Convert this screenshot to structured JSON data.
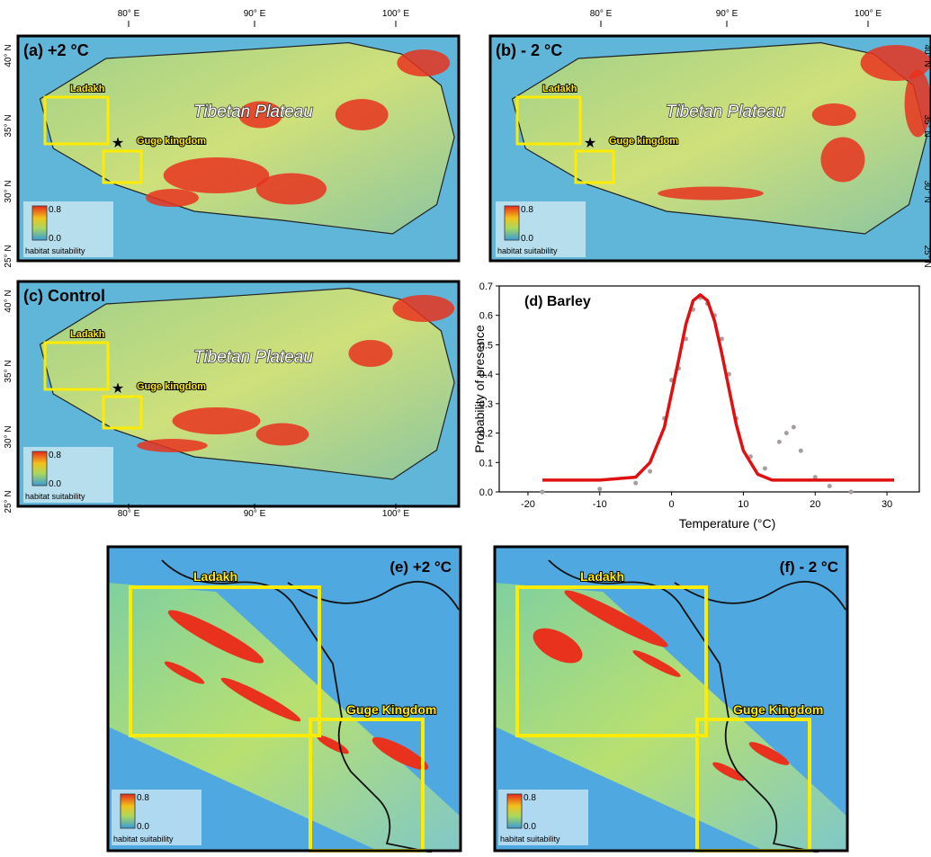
{
  "lon_labels": [
    "80° E",
    "90° E",
    "100° E"
  ],
  "lat_labels": [
    "40° N",
    "35° N",
    "30° N",
    "25° N"
  ],
  "maps": [
    {
      "label": "(a) +2 °C",
      "ladakh": "Ladakh",
      "guge": "Guge kingdom",
      "plateau": "Tibetan Plateau",
      "legend_max": "0.8",
      "legend_min": "0.0",
      "legend_title": "habitat suitability"
    },
    {
      "label": "(b) - 2 °C",
      "ladakh": "Ladakh",
      "guge": "Guge kingdom",
      "plateau": "Tibetan Plateau",
      "legend_max": "0.8",
      "legend_min": "0.0",
      "legend_title": "habitat suitability"
    },
    {
      "label": "(c) Control",
      "ladakh": "Ladakh",
      "guge": "Guge kingdom",
      "plateau": "Tibetan Plateau",
      "legend_max": "0.8",
      "legend_min": "0.0",
      "legend_title": "habitat suitability"
    },
    {
      "label": "(e) +2 °C",
      "ladakh": "Ladakh",
      "guge": "Guge Kingdom",
      "legend_max": "0.8",
      "legend_min": "0.0",
      "legend_title": "habitat suitability"
    },
    {
      "label": "(f) - 2 °C",
      "ladakh": "Ladakh",
      "guge": "Guge Kingdom",
      "legend_max": "0.8",
      "legend_min": "0.0",
      "legend_title": "habitat suitability"
    }
  ],
  "chart_data": {
    "type": "line",
    "title": "(d) Barley",
    "x_label": "Temperature (°C)",
    "y_label": "Probability of presence",
    "xlim": [
      -24,
      34.5
    ],
    "xticks": [
      -20,
      -10,
      0,
      10,
      20,
      30
    ],
    "ylim": [
      0,
      0.7
    ],
    "yticks": [
      {
        "value": 0,
        "label": "0.0"
      },
      0.1,
      0.2,
      0.3,
      0.4,
      0.5,
      0.6,
      0.7
    ],
    "series": [
      {
        "type": "scatter",
        "color": "#a89e9e",
        "x": [
          -18,
          -10,
          -5,
          -3,
          -1,
          0,
          1,
          2,
          3,
          4,
          5,
          6,
          7,
          8,
          9,
          11,
          13,
          15,
          16,
          17,
          18,
          20,
          22,
          25
        ],
        "values": [
          0,
          0.01,
          0.03,
          0.07,
          0.25,
          0.38,
          0.42,
          0.52,
          0.62,
          0.66,
          0.64,
          0.6,
          0.52,
          0.4,
          0.25,
          0.12,
          0.08,
          0.17,
          0.2,
          0.22,
          0.14,
          0.05,
          0.02,
          0
        ]
      },
      {
        "type": "line",
        "color": "#e01010",
        "x": [
          -18,
          -10,
          -5,
          -3,
          -1,
          1,
          2,
          3,
          4,
          5,
          6,
          7,
          8,
          9,
          10,
          12,
          14,
          31
        ],
        "values": [
          0.04,
          0.04,
          0.05,
          0.1,
          0.22,
          0.45,
          0.57,
          0.65,
          0.67,
          0.65,
          0.58,
          0.47,
          0.35,
          0.23,
          0.14,
          0.06,
          0.04,
          0.04
        ]
      }
    ]
  }
}
